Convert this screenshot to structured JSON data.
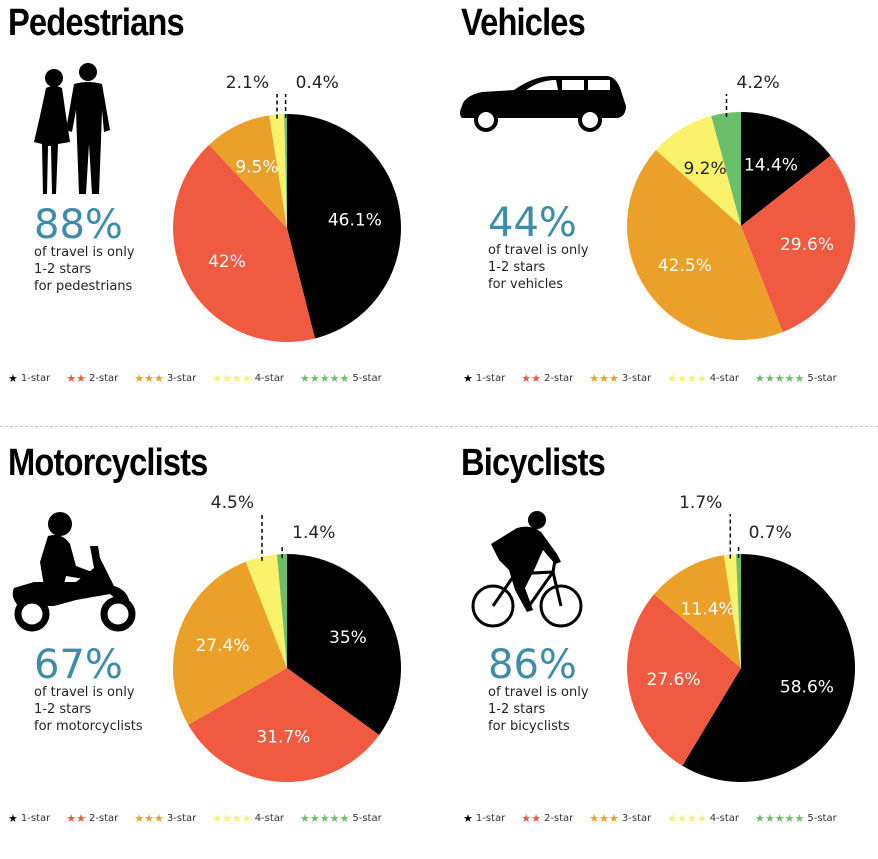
{
  "colors": {
    "one_star": "#000000",
    "two_star": "#f05a40",
    "three_star": "#eba02a",
    "four_star": "#fbf26b",
    "five_star": "#6cbf6a",
    "accent_blue": "#3f8ca8"
  },
  "legend": [
    "1-star",
    "2-star",
    "3-star",
    "4-star",
    "5-star"
  ],
  "panels": [
    {
      "title": "Pedestrians",
      "icon": "pedestrians-icon",
      "big_pct": "88%",
      "desc": [
        "of travel is only",
        "1-2 stars",
        "for pedestrians"
      ]
    },
    {
      "title": "Vehicles",
      "icon": "car-icon",
      "big_pct": "44%",
      "desc": [
        "of travel is only",
        "1-2 stars",
        "for vehicles"
      ]
    },
    {
      "title": "Motorcyclists",
      "icon": "motorcyclist-icon",
      "big_pct": "67%",
      "desc": [
        "of travel is only",
        "1-2 stars",
        "for motorcyclists"
      ]
    },
    {
      "title": "Bicyclists",
      "icon": "bicyclist-icon",
      "big_pct": "86%",
      "desc": [
        "of travel is only",
        "1-2 stars",
        "for bicyclists"
      ]
    }
  ],
  "chart_data": [
    {
      "type": "pie",
      "title": "Pedestrians",
      "categories": [
        "1-star",
        "2-star",
        "3-star",
        "4-star",
        "5-star"
      ],
      "values": [
        46.1,
        42,
        9.5,
        2.1,
        0.4
      ],
      "labels": [
        "46.1%",
        "42%",
        "9.5%",
        "2.1%",
        "0.4%"
      ]
    },
    {
      "type": "pie",
      "title": "Vehicles",
      "categories": [
        "1-star",
        "2-star",
        "3-star",
        "4-star",
        "5-star"
      ],
      "values": [
        14.4,
        29.6,
        42.5,
        9.2,
        4.2
      ],
      "labels": [
        "14.4%",
        "29.6%",
        "42.5%",
        "9.2%",
        "4.2%"
      ]
    },
    {
      "type": "pie",
      "title": "Motorcyclists",
      "categories": [
        "1-star",
        "2-star",
        "3-star",
        "4-star",
        "5-star"
      ],
      "values": [
        35,
        31.7,
        27.4,
        4.5,
        1.4
      ],
      "labels": [
        "35%",
        "31.7%",
        "27.4%",
        "4.5%",
        "1.4%"
      ]
    },
    {
      "type": "pie",
      "title": "Bicyclists",
      "categories": [
        "1-star",
        "2-star",
        "3-star",
        "4-star",
        "5-star"
      ],
      "values": [
        58.6,
        27.6,
        11.4,
        1.7,
        0.7
      ],
      "labels": [
        "58.6%",
        "27.6%",
        "11.4%",
        "1.7%",
        "0.7%"
      ]
    }
  ]
}
